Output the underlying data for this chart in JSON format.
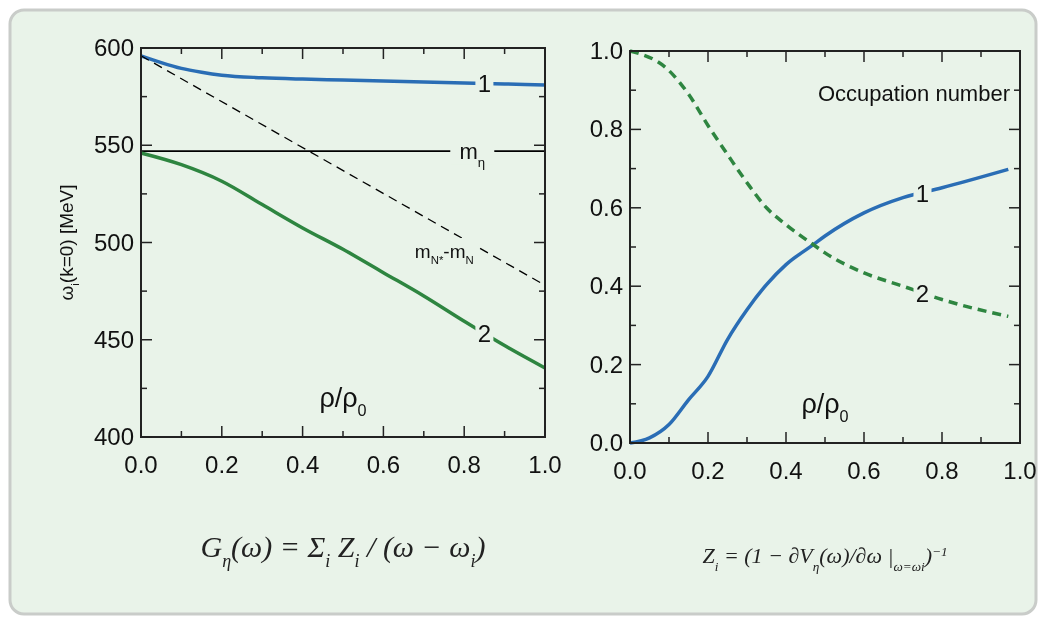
{
  "chart_data": [
    {
      "type": "line",
      "ylabel": "ω$_{i}$(k=0) [MeV]",
      "xlabel": "ρ/ρ$_{0}$",
      "xlim": [
        0,
        1
      ],
      "ylim": [
        400,
        600
      ],
      "xticks": [
        {
          "value": 0,
          "label": "0.0"
        },
        {
          "value": 0.1,
          "label": null
        },
        {
          "value": 0.2,
          "label": "0.2"
        },
        {
          "value": 0.3,
          "label": null
        },
        {
          "value": 0.4,
          "label": "0.4"
        },
        {
          "value": 0.5,
          "label": null
        },
        {
          "value": 0.6,
          "label": "0.6"
        },
        {
          "value": 0.7,
          "label": null
        },
        {
          "value": 0.8,
          "label": "0.8"
        },
        {
          "value": 0.9,
          "label": null
        },
        {
          "value": 1,
          "label": "1.0"
        }
      ],
      "yticks": [
        400,
        {
          "value": 425,
          "label": null
        },
        450,
        {
          "value": 475,
          "label": null
        },
        500,
        {
          "value": 525,
          "label": null
        },
        550,
        {
          "value": 575,
          "label": null
        },
        600
      ],
      "grid": false,
      "line_style": "solid",
      "series": [
        {
          "name": "1",
          "color": "#2a6db5",
          "x": [
            0,
            0.05,
            0.1,
            0.15,
            0.2,
            0.3,
            0.4,
            0.5,
            0.6,
            0.7,
            0.8,
            0.9,
            1
          ],
          "values": [
            596,
            592.5,
            589.5,
            587.5,
            586,
            584.7,
            584,
            583.5,
            583,
            582.5,
            582,
            581.5,
            581
          ]
        },
        {
          "name": "2",
          "color": "#2e8540",
          "x": [
            0,
            0.1,
            0.2,
            0.3,
            0.4,
            0.5,
            0.6,
            0.7,
            0.8,
            0.9,
            1
          ],
          "values": [
            546,
            540,
            531.5,
            519.5,
            507.5,
            496.5,
            484.5,
            472.5,
            459.5,
            447,
            435.5
          ]
        },
        {
          "name": "m$_{N*}$-m$_{N}$",
          "color": "#000000",
          "line_style": "dashed",
          "x": [
            0,
            1
          ],
          "values": [
            596,
            478
          ]
        }
      ],
      "ref_lines": [
        {
          "axis": "y",
          "value": 547,
          "label": "m$_{η}$",
          "color": "#000000"
        }
      ],
      "annotations": [
        "G$_{η}$(ω) = Σ$_{i}$ Z$_{i}$ / (ω − ω$_{i}$)"
      ]
    },
    {
      "type": "line",
      "title": "Occupation number",
      "xlabel": "ρ/ρ$_{0}$",
      "xlim": [
        0,
        1
      ],
      "ylim": [
        0,
        1
      ],
      "xticks": [
        {
          "value": 0,
          "label": "0.0"
        },
        {
          "value": 0.1,
          "label": null
        },
        {
          "value": 0.2,
          "label": "0.2"
        },
        {
          "value": 0.3,
          "label": null
        },
        {
          "value": 0.4,
          "label": "0.4"
        },
        {
          "value": 0.5,
          "label": null
        },
        {
          "value": 0.6,
          "label": "0.6"
        },
        {
          "value": 0.7,
          "label": null
        },
        {
          "value": 0.8,
          "label": "0.8"
        },
        {
          "value": 0.9,
          "label": null
        },
        {
          "value": 1,
          "label": "1.0"
        }
      ],
      "yticks": [
        {
          "value": 0,
          "label": "0.0"
        },
        {
          "value": 0.1,
          "label": null
        },
        {
          "value": 0.2,
          "label": "0.2"
        },
        {
          "value": 0.3,
          "label": null
        },
        {
          "value": 0.4,
          "label": "0.4"
        },
        {
          "value": 0.5,
          "label": null
        },
        {
          "value": 0.6,
          "label": "0.6"
        },
        {
          "value": 0.7,
          "label": null
        },
        {
          "value": 0.8,
          "label": "0.8"
        },
        {
          "value": 0.9,
          "label": null
        },
        {
          "value": 1,
          "label": "1.0"
        }
      ],
      "grid": false,
      "line_style": "solid",
      "series": [
        {
          "name": "1",
          "color": "#2a6db5",
          "x": [
            0,
            0.05,
            0.1,
            0.15,
            0.2,
            0.25,
            0.3,
            0.35,
            0.4,
            0.47,
            0.5,
            0.6,
            0.7,
            0.8,
            0.97
          ],
          "values": [
            0,
            0.013,
            0.047,
            0.11,
            0.17,
            0.264,
            0.34,
            0.404,
            0.455,
            0.506,
            0.528,
            0.587,
            0.626,
            0.651,
            0.698
          ]
        },
        {
          "name": "2",
          "color": "#2e8540",
          "line_style": "dashed",
          "x": [
            0,
            0.1,
            0.15,
            0.2,
            0.25,
            0.3,
            0.35,
            0.4,
            0.47,
            0.5,
            0.6,
            0.7,
            0.8,
            0.97
          ],
          "values": [
            1,
            0.95,
            0.89,
            0.81,
            0.736,
            0.664,
            0.6,
            0.557,
            0.506,
            0.485,
            0.434,
            0.4,
            0.366,
            0.323
          ]
        }
      ],
      "annotations": [
        "Z$_{i}$ = (1 − ∂V$_{η}$(ω)/∂ω |$_{ω=ωi}$)$^{−1}$"
      ]
    }
  ]
}
